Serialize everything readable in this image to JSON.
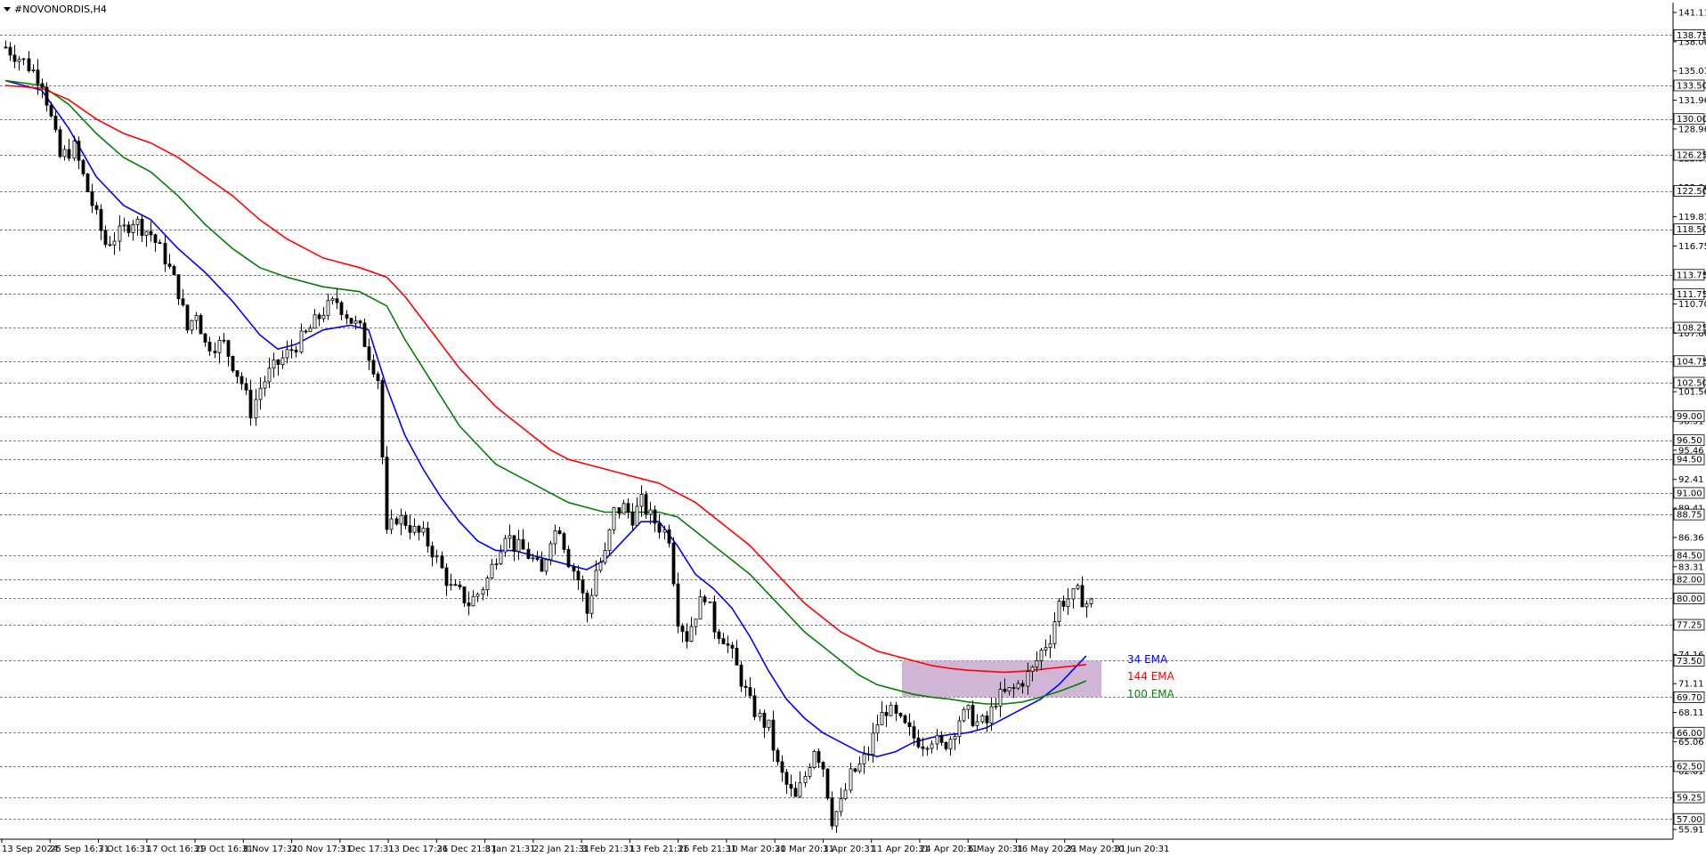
{
  "symbol_title": "#NOVONORDIS,H4",
  "colors": {
    "ema34": "#0000ff",
    "ema100": "#008000",
    "ema144": "#ff0000",
    "zone": "#c8a8d0",
    "level_line": "#000000",
    "candle": "#000000",
    "badge_bg": "#ffffff"
  },
  "chart_data": {
    "type": "candlestick",
    "title": "#NOVONORDIS,H4",
    "ylim": [
      55.91,
      141.11
    ],
    "y_ticks": [
      141.11,
      138.06,
      135.01,
      131.96,
      128.96,
      125.91,
      122.86,
      119.81,
      116.75,
      113.75,
      110.7,
      107.66,
      104.61,
      101.56,
      98.51,
      95.46,
      92.41,
      89.41,
      86.36,
      83.31,
      80.26,
      77.25,
      74.16,
      71.11,
      68.11,
      65.06,
      62.01,
      58.96,
      55.91
    ],
    "x_ticks": [
      "13 Sep 2024",
      "25 Sep 16:31",
      "7 Oct 16:31",
      "17 Oct 16:31",
      "29 Oct 16:31",
      "8 Nov 17:31",
      "20 Nov 17:31",
      "3 Dec 17:31",
      "13 Dec 17:31",
      "26 Dec 21:31",
      "8 Jan 21:31",
      "22 Jan 21:31",
      "3 Feb 21:31",
      "13 Feb 21:31",
      "26 Feb 21:31",
      "10 Mar 20:31",
      "20 Mar 20:31",
      "1 Apr 20:31",
      "11 Apr 20:31",
      "24 Apr 20:31",
      "6 May 20:31",
      "16 May 20:31",
      "29 May 20:31",
      "10 Jun 20:31"
    ],
    "levels": [
      138.75,
      133.5,
      130.0,
      126.25,
      122.5,
      118.5,
      113.75,
      111.75,
      108.25,
      104.75,
      102.5,
      99.0,
      96.5,
      94.5,
      91.0,
      88.75,
      84.5,
      82.0,
      80.0,
      77.25,
      73.5,
      69.7,
      66.0,
      62.5,
      59.25,
      57.0
    ],
    "zone": {
      "high": 73.5,
      "low": 69.7
    },
    "price_path": [
      [
        0,
        137.5
      ],
      [
        4,
        136.0
      ],
      [
        8,
        134.0
      ],
      [
        12,
        126.0
      ],
      [
        15,
        127.0
      ],
      [
        18,
        122.5
      ],
      [
        22,
        117.0
      ],
      [
        25,
        118.0
      ],
      [
        28,
        119.5
      ],
      [
        32,
        118.0
      ],
      [
        35,
        115.5
      ],
      [
        38,
        112.0
      ],
      [
        40,
        108.0
      ],
      [
        42,
        110.0
      ],
      [
        44,
        106.5
      ],
      [
        48,
        106.5
      ],
      [
        52,
        102.5
      ],
      [
        54,
        99.5
      ],
      [
        56,
        102.0
      ],
      [
        58,
        103.5
      ],
      [
        60,
        104.5
      ],
      [
        63,
        106.0
      ],
      [
        66,
        107.5
      ],
      [
        70,
        110.0
      ],
      [
        73,
        111.0
      ],
      [
        76,
        109.0
      ],
      [
        78,
        108.0
      ],
      [
        80,
        105.5
      ],
      [
        82,
        103.0
      ],
      [
        84,
        86.5
      ],
      [
        86,
        88.5
      ],
      [
        88,
        88.0
      ],
      [
        90,
        87.0
      ],
      [
        92,
        86.5
      ],
      [
        94,
        85.0
      ],
      [
        96,
        83.0
      ],
      [
        98,
        81.0
      ],
      [
        100,
        80.5
      ],
      [
        102,
        79.5
      ],
      [
        104,
        80.5
      ],
      [
        106,
        82.0
      ],
      [
        108,
        84.5
      ],
      [
        110,
        87.0
      ],
      [
        112,
        85.5
      ],
      [
        114,
        85.0
      ],
      [
        116,
        84.0
      ],
      [
        118,
        82.5
      ],
      [
        120,
        86.5
      ],
      [
        122,
        87.5
      ],
      [
        124,
        84.0
      ],
      [
        126,
        82.0
      ],
      [
        128,
        78.5
      ],
      [
        130,
        83.0
      ],
      [
        132,
        84.5
      ],
      [
        134,
        89.0
      ],
      [
        136,
        89.5
      ],
      [
        138,
        88.5
      ],
      [
        140,
        90.0
      ],
      [
        142,
        88.5
      ],
      [
        144,
        87.5
      ],
      [
        146,
        86.5
      ],
      [
        148,
        78.0
      ],
      [
        150,
        76.0
      ],
      [
        152,
        78.5
      ],
      [
        154,
        80.5
      ],
      [
        156,
        77.0
      ],
      [
        158,
        76.0
      ],
      [
        160,
        74.0
      ],
      [
        162,
        71.5
      ],
      [
        164,
        69.0
      ],
      [
        166,
        67.5
      ],
      [
        168,
        66.5
      ],
      [
        170,
        62.5
      ],
      [
        172,
        60.5
      ],
      [
        174,
        59.0
      ],
      [
        176,
        61.5
      ],
      [
        178,
        64.5
      ],
      [
        180,
        62.5
      ],
      [
        182,
        57.0
      ],
      [
        184,
        58.5
      ],
      [
        186,
        61.5
      ],
      [
        188,
        62.5
      ],
      [
        190,
        64.0
      ],
      [
        192,
        67.0
      ],
      [
        194,
        68.5
      ],
      [
        196,
        67.5
      ],
      [
        198,
        66.5
      ],
      [
        200,
        65.5
      ],
      [
        202,
        65.0
      ],
      [
        204,
        65.5
      ],
      [
        206,
        64.5
      ],
      [
        208,
        65.5
      ],
      [
        210,
        67.5
      ],
      [
        212,
        68.0
      ],
      [
        214,
        67.0
      ],
      [
        216,
        67.0
      ],
      [
        218,
        69.5
      ],
      [
        220,
        70.0
      ],
      [
        222,
        70.5
      ],
      [
        224,
        71.5
      ],
      [
        226,
        72.5
      ],
      [
        228,
        74.5
      ],
      [
        230,
        76.0
      ],
      [
        232,
        79.5
      ],
      [
        234,
        80.0
      ],
      [
        236,
        80.5
      ],
      [
        238,
        79.5
      ]
    ],
    "series": [
      {
        "name": "34 EMA",
        "color": "#0000ff",
        "points": [
          [
            0,
            134.0
          ],
          [
            8,
            133.0
          ],
          [
            14,
            129.0
          ],
          [
            20,
            124.0
          ],
          [
            26,
            121.0
          ],
          [
            32,
            119.5
          ],
          [
            38,
            116.5
          ],
          [
            44,
            114.0
          ],
          [
            50,
            111.0
          ],
          [
            56,
            107.5
          ],
          [
            60,
            106.0
          ],
          [
            64,
            106.5
          ],
          [
            70,
            108.0
          ],
          [
            76,
            108.5
          ],
          [
            80,
            108.0
          ],
          [
            84,
            102.0
          ],
          [
            88,
            97.0
          ],
          [
            92,
            93.5
          ],
          [
            96,
            90.5
          ],
          [
            100,
            88.0
          ],
          [
            104,
            86.0
          ],
          [
            108,
            85.0
          ],
          [
            112,
            85.0
          ],
          [
            116,
            84.5
          ],
          [
            120,
            84.0
          ],
          [
            124,
            83.5
          ],
          [
            128,
            83.0
          ],
          [
            132,
            84.0
          ],
          [
            136,
            86.0
          ],
          [
            140,
            88.0
          ],
          [
            144,
            88.0
          ],
          [
            148,
            85.5
          ],
          [
            152,
            82.5
          ],
          [
            156,
            81.0
          ],
          [
            160,
            79.0
          ],
          [
            164,
            76.0
          ],
          [
            168,
            72.5
          ],
          [
            172,
            69.5
          ],
          [
            176,
            67.5
          ],
          [
            180,
            66.0
          ],
          [
            184,
            65.0
          ],
          [
            188,
            64.0
          ],
          [
            192,
            63.5
          ],
          [
            196,
            64.0
          ],
          [
            200,
            65.0
          ],
          [
            204,
            65.5
          ],
          [
            208,
            65.8
          ],
          [
            212,
            66.0
          ],
          [
            216,
            66.5
          ],
          [
            220,
            67.5
          ],
          [
            224,
            68.5
          ],
          [
            228,
            69.5
          ],
          [
            232,
            71.0
          ],
          [
            236,
            73.0
          ],
          [
            238,
            74.0
          ]
        ]
      },
      {
        "name": "100 EMA",
        "color": "#008000",
        "points": [
          [
            0,
            134.0
          ],
          [
            8,
            133.5
          ],
          [
            14,
            131.5
          ],
          [
            20,
            128.5
          ],
          [
            26,
            126.0
          ],
          [
            32,
            124.5
          ],
          [
            38,
            122.0
          ],
          [
            44,
            119.0
          ],
          [
            50,
            116.5
          ],
          [
            56,
            114.5
          ],
          [
            62,
            113.5
          ],
          [
            70,
            112.5
          ],
          [
            78,
            112.0
          ],
          [
            84,
            110.5
          ],
          [
            88,
            107.0
          ],
          [
            92,
            104.0
          ],
          [
            96,
            101.0
          ],
          [
            100,
            98.0
          ],
          [
            104,
            96.0
          ],
          [
            108,
            94.0
          ],
          [
            112,
            93.0
          ],
          [
            116,
            92.0
          ],
          [
            120,
            91.0
          ],
          [
            124,
            90.0
          ],
          [
            128,
            89.5
          ],
          [
            132,
            89.0
          ],
          [
            136,
            89.0
          ],
          [
            140,
            89.0
          ],
          [
            144,
            89.0
          ],
          [
            148,
            88.5
          ],
          [
            152,
            87.0
          ],
          [
            156,
            85.5
          ],
          [
            160,
            84.0
          ],
          [
            164,
            82.5
          ],
          [
            168,
            80.5
          ],
          [
            172,
            78.5
          ],
          [
            176,
            76.5
          ],
          [
            180,
            75.0
          ],
          [
            184,
            73.5
          ],
          [
            188,
            72.0
          ],
          [
            192,
            71.0
          ],
          [
            196,
            70.5
          ],
          [
            200,
            70.0
          ],
          [
            204,
            69.7
          ],
          [
            208,
            69.5
          ],
          [
            212,
            69.2
          ],
          [
            216,
            69.0
          ],
          [
            220,
            69.0
          ],
          [
            224,
            69.2
          ],
          [
            228,
            69.7
          ],
          [
            232,
            70.3
          ],
          [
            236,
            71.0
          ],
          [
            238,
            71.4
          ]
        ]
      },
      {
        "name": "144 EMA",
        "color": "#ff0000",
        "points": [
          [
            0,
            133.5
          ],
          [
            8,
            133.2
          ],
          [
            14,
            132.0
          ],
          [
            20,
            130.0
          ],
          [
            26,
            128.5
          ],
          [
            32,
            127.5
          ],
          [
            38,
            126.0
          ],
          [
            44,
            124.0
          ],
          [
            50,
            122.0
          ],
          [
            56,
            119.5
          ],
          [
            62,
            117.5
          ],
          [
            70,
            115.5
          ],
          [
            78,
            114.5
          ],
          [
            84,
            113.5
          ],
          [
            88,
            111.5
          ],
          [
            92,
            109.0
          ],
          [
            96,
            106.5
          ],
          [
            100,
            104.0
          ],
          [
            104,
            102.0
          ],
          [
            108,
            100.0
          ],
          [
            112,
            98.5
          ],
          [
            116,
            97.0
          ],
          [
            120,
            95.5
          ],
          [
            124,
            94.5
          ],
          [
            128,
            94.0
          ],
          [
            132,
            93.5
          ],
          [
            136,
            93.0
          ],
          [
            140,
            92.5
          ],
          [
            144,
            92.0
          ],
          [
            148,
            91.0
          ],
          [
            152,
            90.0
          ],
          [
            156,
            88.5
          ],
          [
            160,
            87.0
          ],
          [
            164,
            85.5
          ],
          [
            168,
            83.5
          ],
          [
            172,
            81.5
          ],
          [
            176,
            79.5
          ],
          [
            180,
            78.0
          ],
          [
            184,
            76.5
          ],
          [
            188,
            75.5
          ],
          [
            192,
            74.5
          ],
          [
            196,
            74.0
          ],
          [
            200,
            73.5
          ],
          [
            204,
            73.0
          ],
          [
            208,
            72.7
          ],
          [
            212,
            72.5
          ],
          [
            216,
            72.4
          ],
          [
            220,
            72.3
          ],
          [
            224,
            72.4
          ],
          [
            228,
            72.6
          ],
          [
            232,
            72.8
          ],
          [
            236,
            73.0
          ],
          [
            238,
            73.1
          ]
        ]
      }
    ],
    "annotations": [
      {
        "text": "34 EMA",
        "color": "#0000ff"
      },
      {
        "text": "144 EMA",
        "color": "#ff0000"
      },
      {
        "text": "100 EMA",
        "color": "#008000"
      }
    ],
    "grid": false
  }
}
